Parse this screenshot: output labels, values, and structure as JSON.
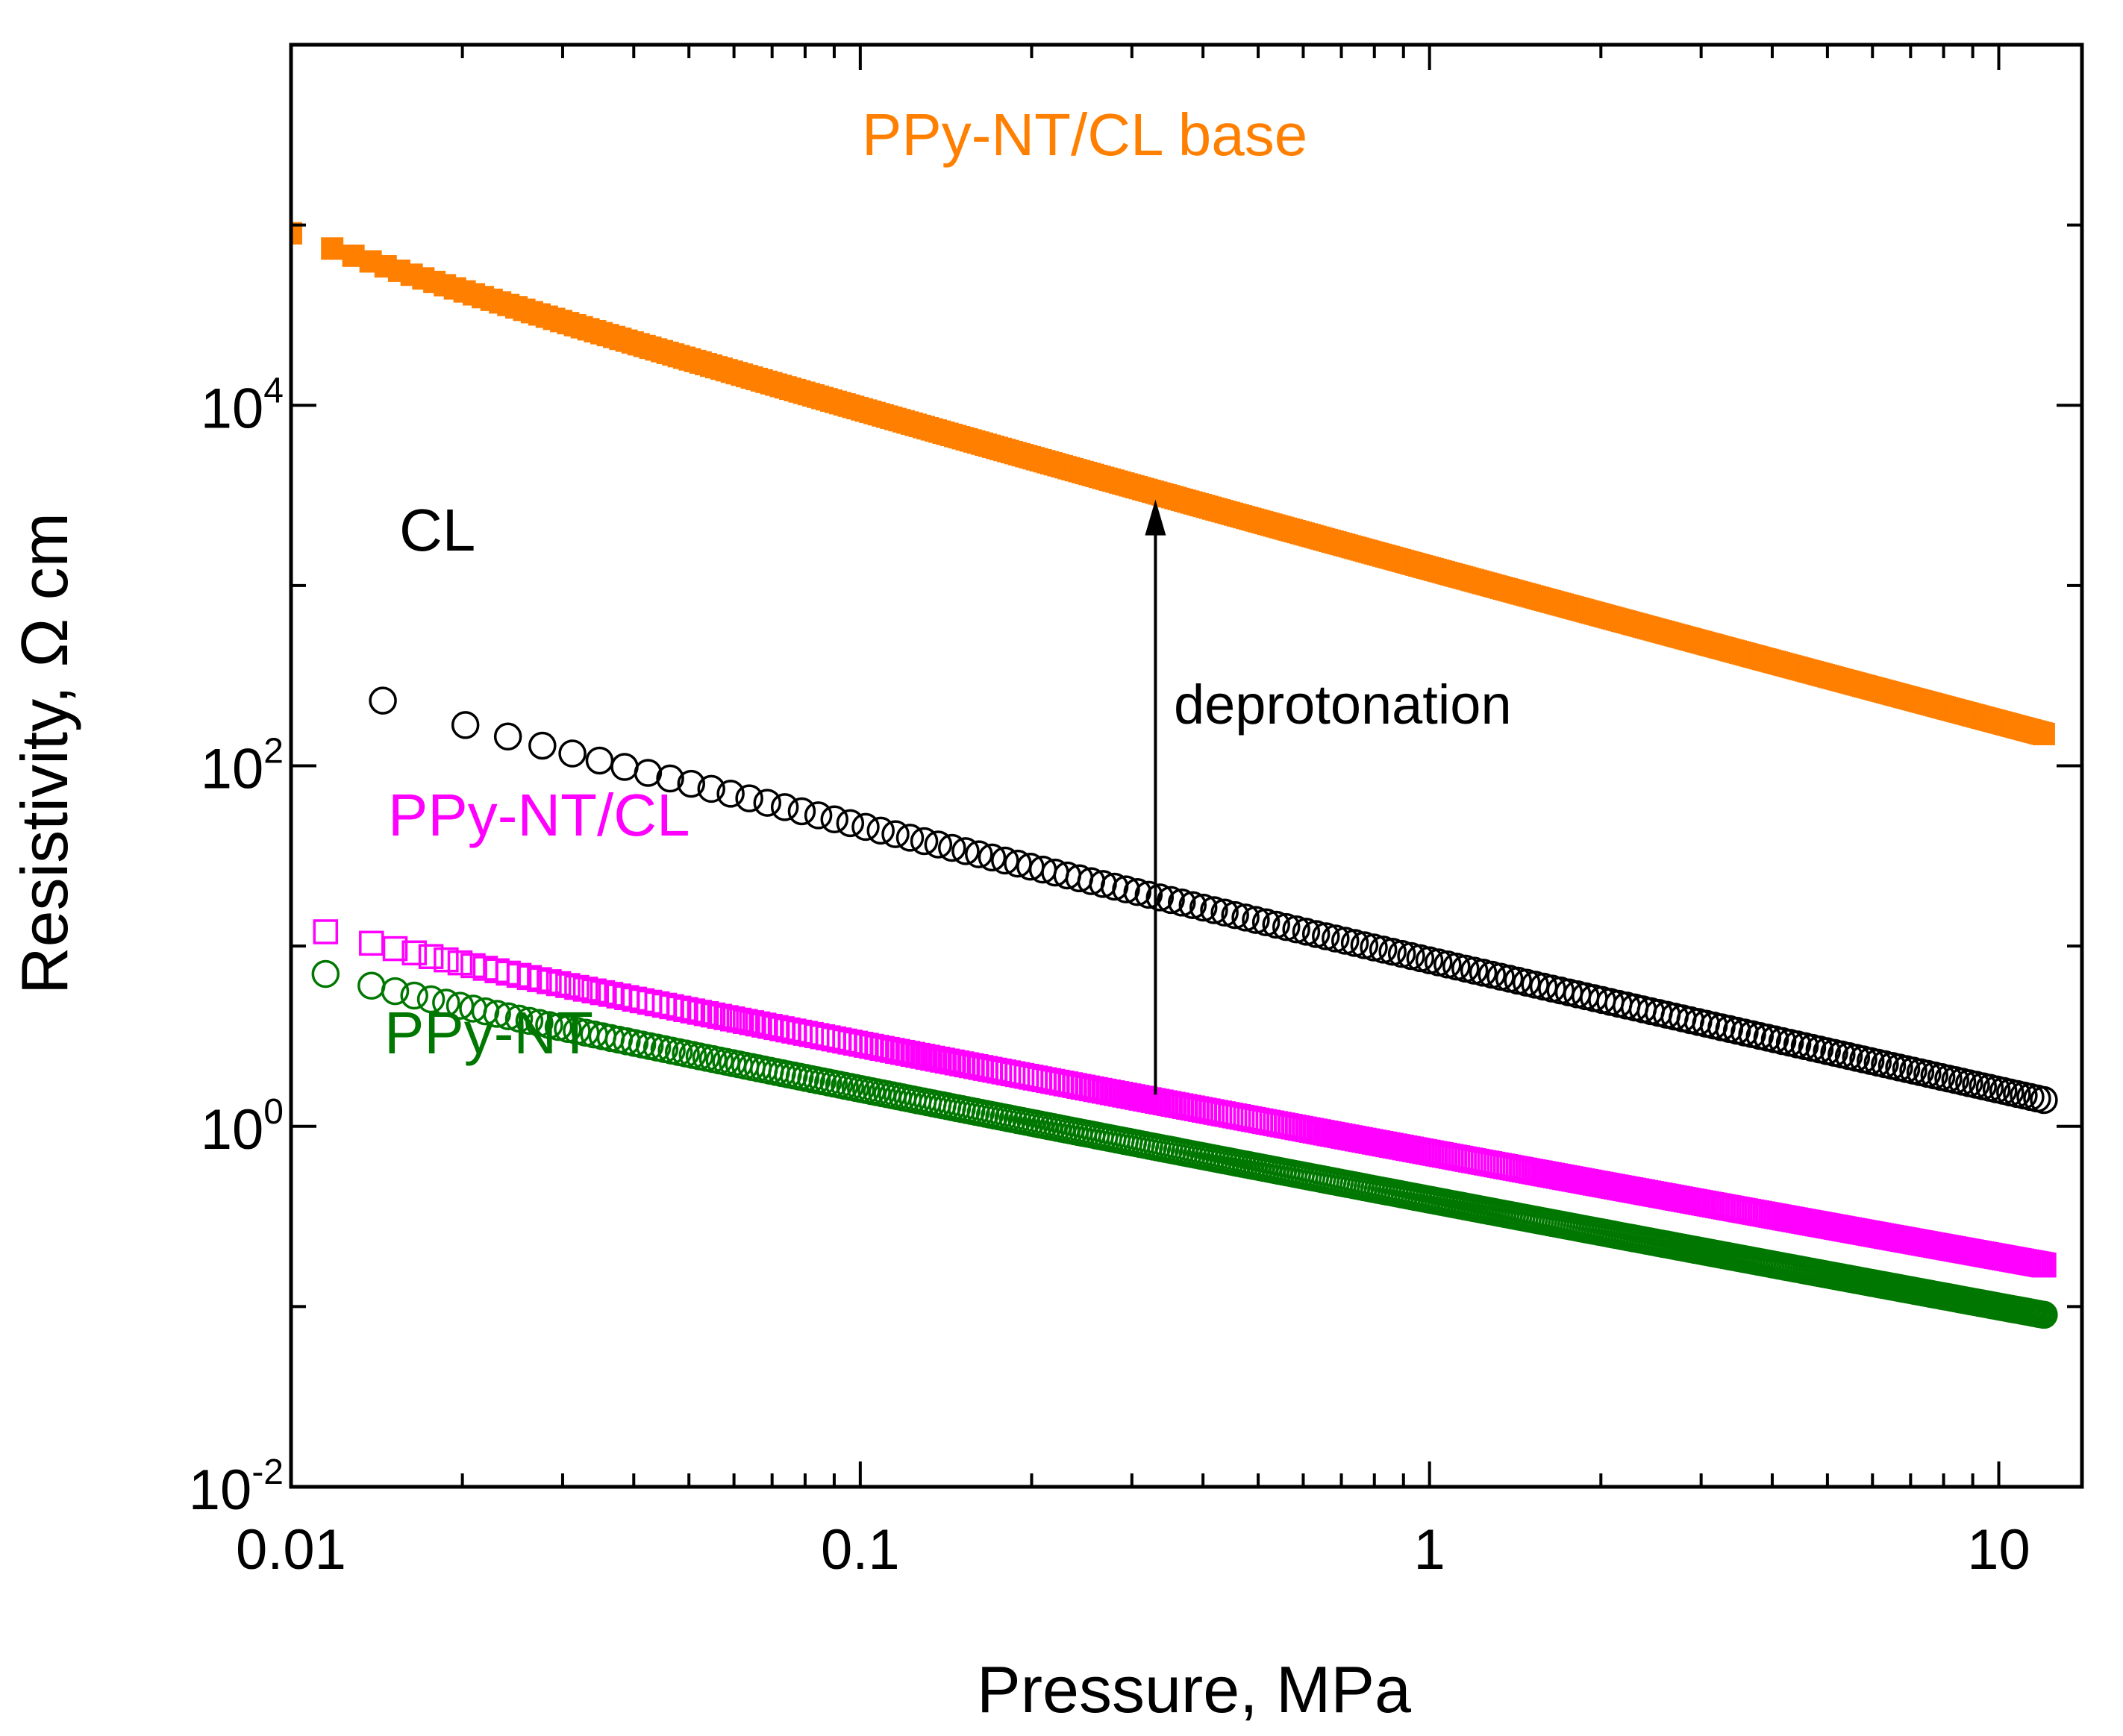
{
  "chart_data": {
    "type": "scatter",
    "title": "",
    "xlabel": "Pressure, MPa",
    "ylabel": "Resistivity, Ω cm",
    "xscale": "log",
    "yscale": "log",
    "xlim": [
      0.01,
      14
    ],
    "ylim": [
      0.01,
      1000000
    ],
    "xticks": [
      {
        "value": 0.01,
        "label": "0.01"
      },
      {
        "value": 0.1,
        "label": "0.1"
      },
      {
        "value": 1,
        "label": "1"
      },
      {
        "value": 10,
        "label": "10"
      }
    ],
    "yticks": [
      {
        "value": 0.01,
        "mantissa": "10",
        "exponent": "-2"
      },
      {
        "value": 1,
        "mantissa": "10",
        "exponent": "0"
      },
      {
        "value": 100,
        "mantissa": "10",
        "exponent": "2"
      },
      {
        "value": 10000,
        "mantissa": "10",
        "exponent": "4"
      }
    ],
    "series": [
      {
        "name": "PPy-NT/CL base",
        "color": "#ff7f00",
        "marker": "filled-square",
        "x_start": 0.01,
        "x_end": 12,
        "y_start": 90000,
        "y_end": 150,
        "points": 520
      },
      {
        "name": "CL",
        "color": "#000000",
        "marker": "open-circle",
        "x_start": 0.0145,
        "x_end": 12,
        "y_start": 230,
        "y_end": 1.4,
        "points": 150
      },
      {
        "name": "PPy-NT/CL",
        "color": "#ff00ff",
        "marker": "open-square",
        "x_start": 0.0115,
        "x_end": 12,
        "y_start": 12,
        "y_end": 0.17,
        "points": 420
      },
      {
        "name": "PPy-NT",
        "color": "#007700",
        "marker": "open-circle",
        "x_start": 0.0115,
        "x_end": 12,
        "y_start": 7,
        "y_end": 0.09,
        "points": 420
      }
    ],
    "series_labels": [
      {
        "text": "PPy-NT/CL base",
        "color": "#ff7f00"
      },
      {
        "text": "CL",
        "color": "#000000"
      },
      {
        "text": "PPy-NT/CL",
        "color": "#ff00ff"
      },
      {
        "text": "PPy-NT",
        "color": "#007700"
      }
    ],
    "annotations": [
      {
        "text": "deprotonation",
        "arrow_x": 0.33,
        "arrow_from_y": 1.5,
        "arrow_to_y": 3000
      }
    ]
  }
}
